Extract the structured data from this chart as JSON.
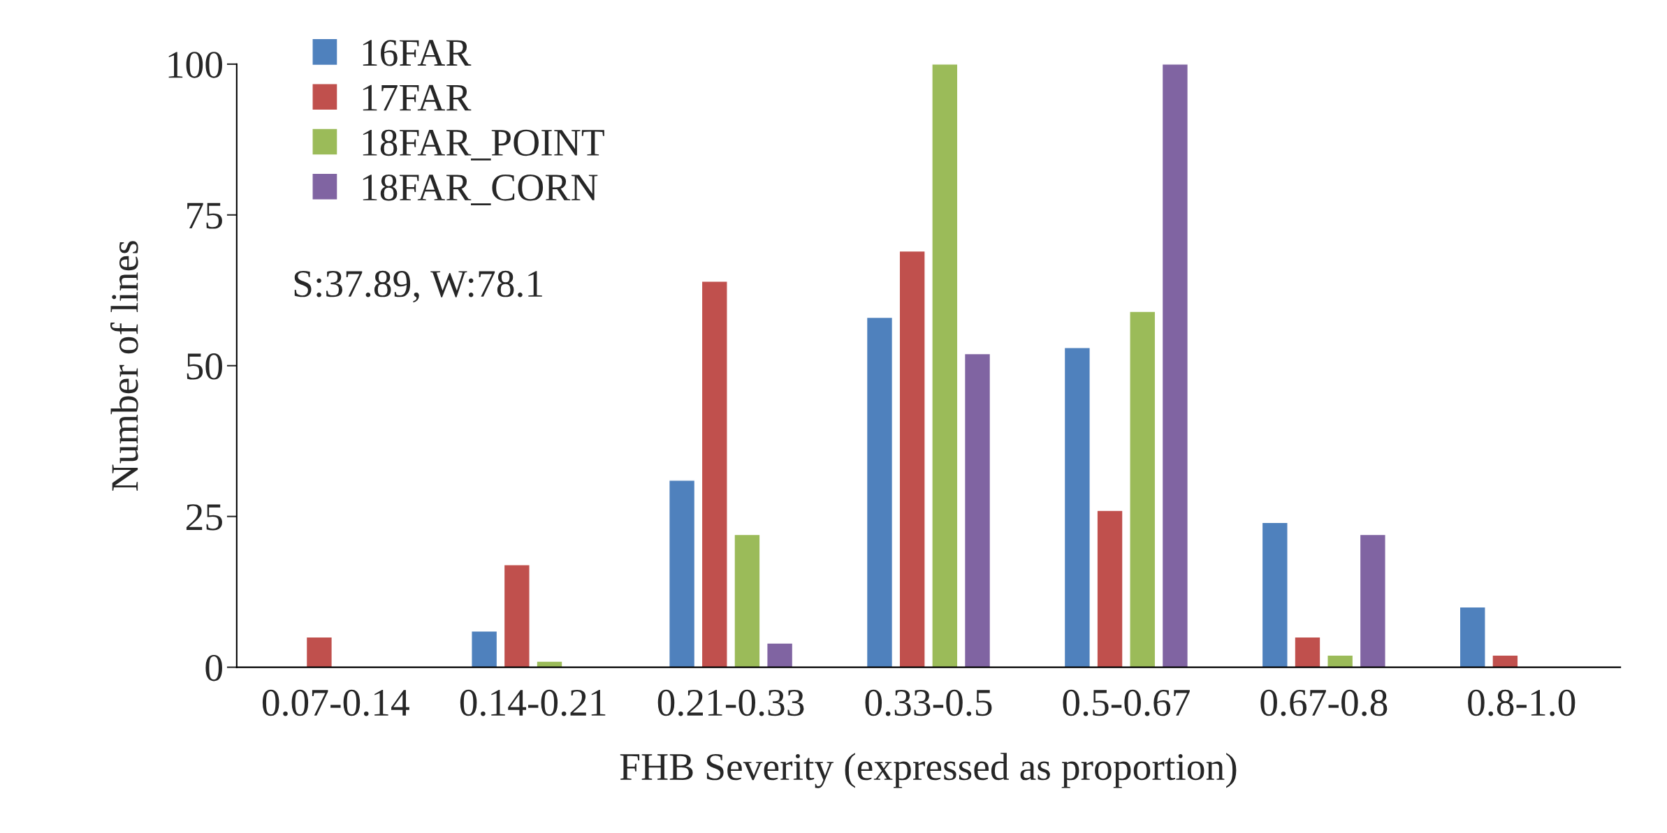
{
  "chart_data": {
    "type": "bar",
    "xlabel": "FHB Severity (expressed as proportion)",
    "ylabel": "Number of lines",
    "categories": [
      "0.07-0.14",
      "0.14-0.21",
      "0.21-0.33",
      "0.33-0.5",
      "0.5-0.67",
      "0.67-0.8",
      "0.8-1.0"
    ],
    "series": [
      {
        "name": "16FAR",
        "color": "#4f81bd",
        "values": [
          null,
          6,
          31,
          58,
          53,
          24,
          10
        ]
      },
      {
        "name": "17FAR",
        "color": "#c0504d",
        "values": [
          5,
          17,
          64,
          69,
          26,
          5,
          2
        ]
      },
      {
        "name": "18FAR_POINT",
        "color": "#9bbb59",
        "values": [
          null,
          1,
          22,
          100,
          59,
          2,
          null
        ]
      },
      {
        "name": "18FAR_CORN",
        "color": "#8064a2",
        "values": [
          null,
          null,
          4,
          52,
          100,
          22,
          null
        ]
      }
    ],
    "ylim": [
      0,
      100
    ],
    "yticks": [
      0,
      25,
      50,
      75,
      100
    ],
    "annotations": [
      "S:37.89, W:78.1"
    ],
    "legend": "top left",
    "grid": false
  }
}
